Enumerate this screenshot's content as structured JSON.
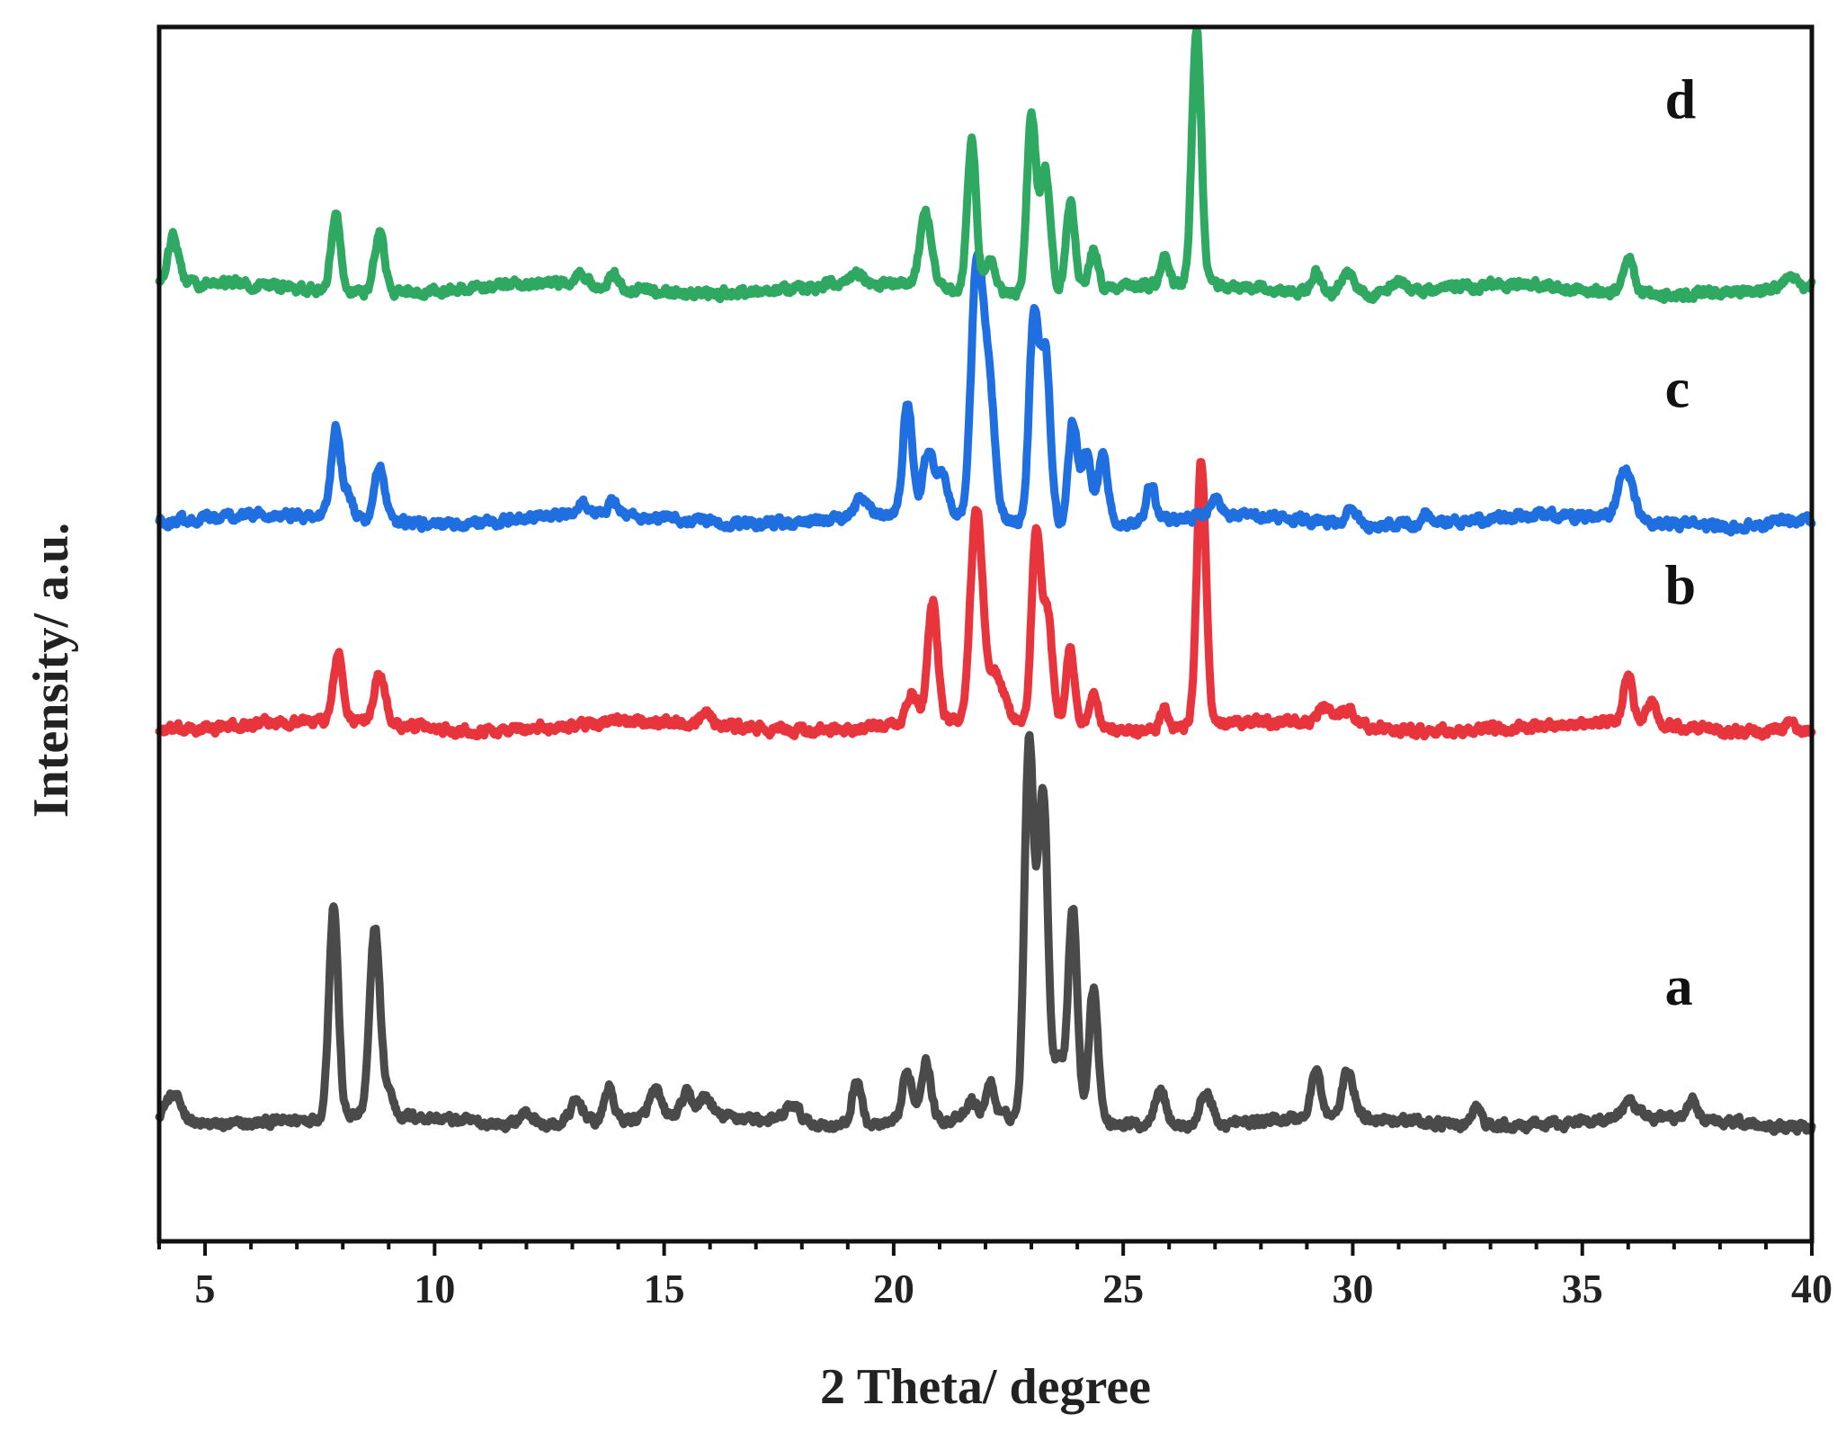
{
  "chart_data": {
    "type": "line",
    "xlabel": "2 Theta/ degree",
    "ylabel": "Intensity/ a.u.",
    "xlim": [
      4,
      40
    ],
    "ylim": [
      0,
      1000
    ],
    "xticks": [
      5,
      10,
      15,
      20,
      25,
      30,
      35,
      40
    ],
    "y_ticks_shown": false,
    "grid": false,
    "legend": "none (series labeled inline at right)",
    "series": [
      {
        "name": "a",
        "color": "#4a4a4a",
        "baseline": 100,
        "peaks": [
          [
            4.3,
            22,
            0.2
          ],
          [
            7.8,
            175,
            0.1
          ],
          [
            8.7,
            155,
            0.11
          ],
          [
            9.0,
            20,
            0.1
          ],
          [
            12.0,
            10,
            0.15
          ],
          [
            13.1,
            18,
            0.15
          ],
          [
            13.8,
            28,
            0.1
          ],
          [
            14.8,
            22,
            0.12
          ],
          [
            15.5,
            18,
            0.12
          ],
          [
            15.9,
            16,
            0.12
          ],
          [
            17.8,
            14,
            0.15
          ],
          [
            19.2,
            38,
            0.1
          ],
          [
            20.3,
            42,
            0.11
          ],
          [
            20.7,
            50,
            0.11
          ],
          [
            21.7,
            14,
            0.1
          ],
          [
            22.1,
            28,
            0.1
          ],
          [
            22.95,
            310,
            0.1
          ],
          [
            23.25,
            270,
            0.11
          ],
          [
            23.6,
            50,
            0.1
          ],
          [
            23.9,
            175,
            0.1
          ],
          [
            24.35,
            110,
            0.1
          ],
          [
            25.8,
            32,
            0.12
          ],
          [
            26.8,
            28,
            0.12
          ],
          [
            29.2,
            40,
            0.1
          ],
          [
            29.9,
            38,
            0.12
          ],
          [
            32.7,
            16,
            0.1
          ],
          [
            36.0,
            12,
            0.15
          ],
          [
            37.4,
            14,
            0.1
          ]
        ]
      },
      {
        "name": "b",
        "color": "#e8343c",
        "baseline": 425,
        "peaks": [
          [
            7.9,
            55,
            0.1
          ],
          [
            8.8,
            40,
            0.12
          ],
          [
            15.9,
            10,
            0.12
          ],
          [
            20.4,
            25,
            0.12
          ],
          [
            20.85,
            100,
            0.11
          ],
          [
            21.8,
            170,
            0.13
          ],
          [
            22.2,
            40,
            0.2
          ],
          [
            23.1,
            155,
            0.1
          ],
          [
            23.35,
            90,
            0.11
          ],
          [
            23.85,
            65,
            0.1
          ],
          [
            24.35,
            30,
            0.1
          ],
          [
            25.9,
            18,
            0.1
          ],
          [
            26.7,
            220,
            0.1
          ],
          [
            29.4,
            12,
            0.15
          ],
          [
            29.9,
            12,
            0.15
          ],
          [
            36.0,
            40,
            0.1
          ],
          [
            36.5,
            18,
            0.1
          ],
          [
            39.5,
            10,
            0.1
          ]
        ]
      },
      {
        "name": "c",
        "color": "#1f6fe0",
        "baseline": 595,
        "peaks": [
          [
            7.85,
            75,
            0.1
          ],
          [
            8.1,
            20,
            0.1
          ],
          [
            8.8,
            45,
            0.11
          ],
          [
            13.2,
            10,
            0.12
          ],
          [
            13.9,
            12,
            0.12
          ],
          [
            19.3,
            15,
            0.15
          ],
          [
            20.3,
            95,
            0.1
          ],
          [
            20.75,
            50,
            0.12
          ],
          [
            21.05,
            35,
            0.12
          ],
          [
            21.8,
            190,
            0.12
          ],
          [
            22.05,
            120,
            0.14
          ],
          [
            23.05,
            165,
            0.1
          ],
          [
            23.3,
            140,
            0.11
          ],
          [
            23.9,
            85,
            0.1
          ],
          [
            24.2,
            60,
            0.1
          ],
          [
            24.55,
            55,
            0.11
          ],
          [
            25.6,
            30,
            0.1
          ],
          [
            27.0,
            12,
            0.12
          ],
          [
            30.0,
            12,
            0.12
          ],
          [
            31.6,
            10,
            0.1
          ],
          [
            35.95,
            42,
            0.16
          ]
        ]
      },
      {
        "name": "d",
        "color": "#2fa862",
        "baseline": 785,
        "peaks": [
          [
            4.3,
            40,
            0.12
          ],
          [
            7.85,
            65,
            0.1
          ],
          [
            8.8,
            50,
            0.11
          ],
          [
            13.2,
            10,
            0.12
          ],
          [
            13.9,
            10,
            0.12
          ],
          [
            19.2,
            10,
            0.12
          ],
          [
            20.7,
            60,
            0.13
          ],
          [
            21.7,
            125,
            0.1
          ],
          [
            22.1,
            30,
            0.1
          ],
          [
            23.0,
            145,
            0.1
          ],
          [
            23.3,
            100,
            0.11
          ],
          [
            23.85,
            75,
            0.1
          ],
          [
            24.35,
            35,
            0.1
          ],
          [
            25.9,
            22,
            0.1
          ],
          [
            26.6,
            210,
            0.1
          ],
          [
            29.2,
            18,
            0.1
          ],
          [
            29.9,
            16,
            0.15
          ],
          [
            31.0,
            10,
            0.12
          ],
          [
            36.0,
            30,
            0.12
          ],
          [
            39.5,
            10,
            0.1
          ]
        ]
      }
    ]
  }
}
